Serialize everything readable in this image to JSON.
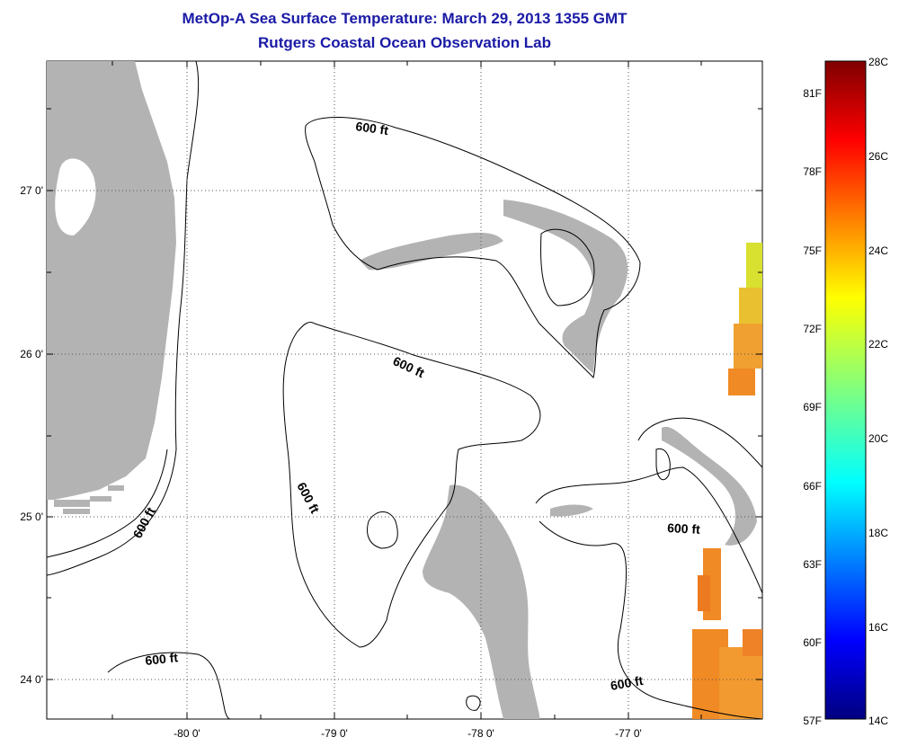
{
  "title": "MetOp-A Sea Surface Temperature:  March 29, 2013 1355 GMT",
  "subtitle": "Rutgers Coastal Ocean Observation Lab",
  "axes": {
    "x_ticks": [
      "-80 0'",
      "-79 0'",
      "-78 0'",
      "-77 0'"
    ],
    "y_ticks": [
      "27 0'",
      "26 0'",
      "25 0'",
      "24 0'"
    ]
  },
  "contour_label": "600 ft",
  "colorbar": {
    "celsius_labels": [
      "28C",
      "26C",
      "24C",
      "22C",
      "20C",
      "18C",
      "16C",
      "14C"
    ],
    "fahrenheit_labels": [
      "81F",
      "78F",
      "75F",
      "72F",
      "69F",
      "66F",
      "63F",
      "60F",
      "57F"
    ]
  },
  "colors": {
    "land": "#b3b3b3",
    "title": "#1a1aa6",
    "sst_warm": "#f08a24",
    "sst_yellow": "#d8e030"
  },
  "icons": [
    "grid-dotted",
    "bathymetry-contour"
  ]
}
